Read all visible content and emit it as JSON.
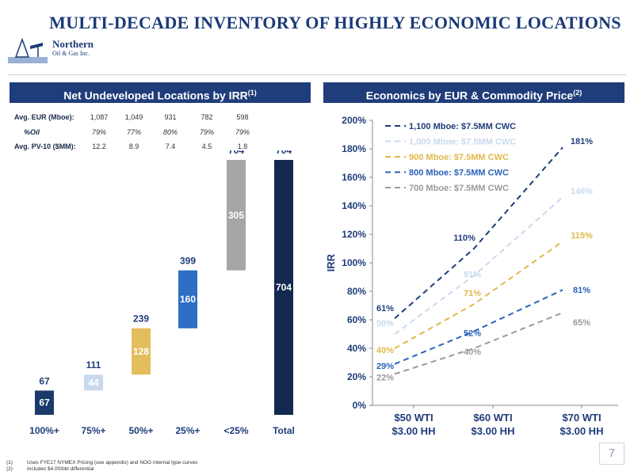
{
  "title": "MULTI-DECADE INVENTORY OF HIGHLY ECONOMIC LOCATIONS",
  "logo": {
    "line1": "Northern",
    "line2": "Oil & Gas Inc."
  },
  "left_header": {
    "text": "Net Undeveloped Locations by IRR",
    "sup": "(1)"
  },
  "right_header": {
    "text": "Economics by EUR & Commodity Price",
    "sup": "(2)"
  },
  "stats": {
    "rows": [
      {
        "label": "Avg. EUR (Mboe):",
        "values": [
          "1,087",
          "1,049",
          "931",
          "782",
          "598"
        ]
      },
      {
        "label": "%Oil",
        "values": [
          "79%",
          "77%",
          "80%",
          "79%",
          "79%"
        ]
      },
      {
        "label": "Avg. PV-10 ($MM):",
        "values": [
          "12.2",
          "8.9",
          "7.4",
          "4.5",
          "1.8"
        ]
      }
    ]
  },
  "footnotes": [
    {
      "num": "(1)",
      "text": "Uses FYE17 NYMEX Pricing (see appendix) and NOG internal type curves"
    },
    {
      "num": "(2)",
      "text": "Includes $4.00/bbl differential"
    }
  ],
  "page_number": "7",
  "chart_data": [
    {
      "type": "bar",
      "subtype": "waterfall",
      "title": "Net Undeveloped Locations by IRR",
      "categories": [
        "100%+",
        "75%+",
        "50%+",
        "25%+",
        "<25%",
        "Total"
      ],
      "increments": [
        67,
        44,
        128,
        160,
        305,
        704
      ],
      "cumulative_labels": [
        "67",
        "111",
        "239",
        "399",
        "704",
        "704"
      ],
      "segment_labels": [
        "67",
        "44",
        "128",
        "160",
        "305",
        "704"
      ],
      "colors": [
        "#1b3a6b",
        "#c9d9ee",
        "#e2bf5c",
        "#2c6fc4",
        "#a6a6a6",
        "#13294f"
      ],
      "label_colors": [
        "#ffffff",
        "#ffffff",
        "#ffffff",
        "#ffffff",
        "#ffffff",
        "#ffffff"
      ],
      "ylim": [
        0,
        704
      ]
    },
    {
      "type": "line",
      "title": "Economics by EUR & Commodity Price",
      "ylabel": "IRR",
      "x": [
        "$50 WTI\n$3.00 HH",
        "$60 WTI\n$3.00 HH",
        "$70 WTI\n$3.00 HH"
      ],
      "ylim": [
        0,
        200
      ],
      "yticks": [
        "0%",
        "20%",
        "40%",
        "60%",
        "80%",
        "100%",
        "120%",
        "140%",
        "160%",
        "180%",
        "200%"
      ],
      "legend_position": "top-left",
      "series": [
        {
          "name": "1,100 Mboe: $7.5MM CWC",
          "values": [
            61,
            110,
            181
          ],
          "labels": [
            "61%",
            "110%",
            "181%"
          ],
          "color": "#1f3d7a"
        },
        {
          "name": "1,000 Mboe: $7.5MM CWC",
          "values": [
            50,
            91,
            146
          ],
          "labels": [
            "50%",
            "91%",
            "146%"
          ],
          "color": "#c8d9ef"
        },
        {
          "name": "900 Mboe: $7.5MM CWC",
          "values": [
            40,
            71,
            115
          ],
          "labels": [
            "40%",
            "71%",
            "115%"
          ],
          "color": "#e0b94a"
        },
        {
          "name": "800 Mboe: $7.5MM CWC",
          "values": [
            29,
            52,
            81
          ],
          "labels": [
            "29%",
            "52%",
            "81%"
          ],
          "color": "#2c63b8"
        },
        {
          "name": "700 Mboe: $7.5MM CWC",
          "values": [
            22,
            40,
            65
          ],
          "labels": [
            "22%",
            "40%",
            "65%"
          ],
          "color": "#9a9a9a"
        }
      ]
    }
  ]
}
